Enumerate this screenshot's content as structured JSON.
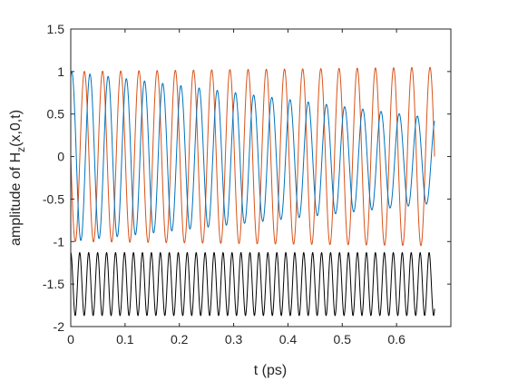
{
  "chart_data": {
    "type": "line",
    "title": "",
    "xlabel": "t (ps)",
    "ylabel_main": "amplitude of H",
    "ylabel_sub": "z",
    "ylabel_tail": "(x,0,t)",
    "xlim": [
      0,
      0.7
    ],
    "ylim": [
      -2,
      1.5
    ],
    "xticks": [
      0,
      0.1,
      0.2,
      0.3,
      0.4,
      0.5,
      0.6
    ],
    "xtick_labels": [
      "0",
      "0.1",
      "0.2",
      "0.3",
      "0.4",
      "0.5",
      "0.6"
    ],
    "yticks": [
      1.5,
      1,
      0.5,
      0,
      -0.5,
      -1,
      -1.5,
      -2
    ],
    "ytick_labels": [
      "1.5",
      "1",
      "0.5",
      "0",
      "-0.5",
      "-1",
      "-1.5",
      "-2"
    ],
    "grid": false,
    "legend": "none",
    "series": [
      {
        "color": "#D95319",
        "description": "sinusoid, period ~0.0335 ps, amplitude 1 rising to ~1.05, starts at 0 going negative",
        "x_start": 0.0,
        "x_end": 0.67,
        "period": 0.0335,
        "amplitude_start": 1.0,
        "amplitude_end": 1.05,
        "offset": 0.0,
        "phase_sign": -1
      },
      {
        "color": "#0072BD",
        "description": "sinusoid, period ~0.0335 ps, amplitude decays from ~1 to ~0.5, starts near 1 (cosine-like)",
        "x_start": 0.0,
        "x_end": 0.67,
        "period": 0.0335,
        "amplitude_start": 1.0,
        "amplitude_end": 0.5,
        "offset_start": 0.0,
        "offset_end": -0.05,
        "phase_sign": 1
      },
      {
        "color": "#000000",
        "description": "sinusoid, period ~0.0165 ps, amplitude ~0.37, centered at -1.5",
        "x_start": 0.0,
        "x_end": 0.67,
        "period": 0.0165,
        "amplitude_start": 0.37,
        "amplitude_end": 0.37,
        "offset": -1.5,
        "phase_sign": 1
      }
    ]
  }
}
